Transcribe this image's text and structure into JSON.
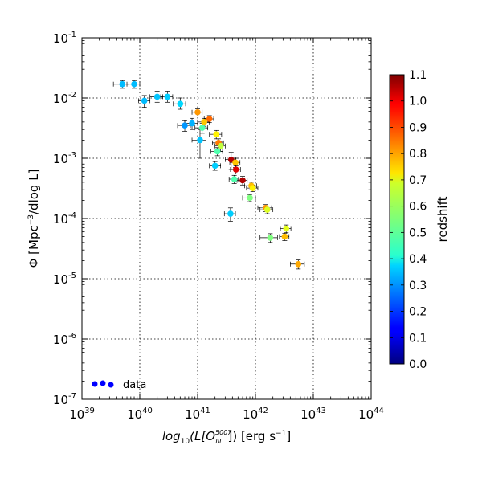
{
  "chart_data": {
    "type": "scatter",
    "title": "",
    "xlabel": "log₁₀(L[O₃₃₃⁵⁰⁰⁷]) [erg s⁻¹]",
    "xlabel_parts": {
      "pre": "log",
      "sub1": "10",
      "mid": "(L[O",
      "sub2": "III",
      "sup": "5007",
      "post": "]) [erg s",
      "unit_sup": "−1",
      "close": "]"
    },
    "ylabel": "Φ [Mpc⁻³/dlog L]",
    "ylabel_parts": {
      "pre": "Φ [Mpc",
      "sup": "−3",
      "post": "/dlog L]"
    },
    "xscale": "log",
    "yscale": "log",
    "xlim": [
      1e+39,
      1e+44
    ],
    "ylim": [
      1e-07,
      0.1
    ],
    "x_ticks": [
      {
        "value": 1e+39,
        "base": "10",
        "exp": "39"
      },
      {
        "value": 1e+40,
        "base": "10",
        "exp": "40"
      },
      {
        "value": 1e+41,
        "base": "10",
        "exp": "41"
      },
      {
        "value": 1e+42,
        "base": "10",
        "exp": "42"
      },
      {
        "value": 1e+43,
        "base": "10",
        "exp": "43"
      },
      {
        "value": 1e+44,
        "base": "10",
        "exp": "44"
      }
    ],
    "y_ticks": [
      {
        "value": 1e-07,
        "base": "10",
        "exp": "-7"
      },
      {
        "value": 1e-06,
        "base": "10",
        "exp": "-6"
      },
      {
        "value": 1e-05,
        "base": "10",
        "exp": "-5"
      },
      {
        "value": 0.0001,
        "base": "10",
        "exp": "-4"
      },
      {
        "value": 0.001,
        "base": "10",
        "exp": "-3"
      },
      {
        "value": 0.01,
        "base": "10",
        "exp": "-2"
      },
      {
        "value": 0.1,
        "base": "10",
        "exp": "-1"
      }
    ],
    "grid": true,
    "legend": {
      "placement": "lower-left",
      "entries": [
        {
          "label": "data",
          "color": "#0000ff"
        }
      ]
    },
    "colorbar": {
      "label": "redshift",
      "min": 0.0,
      "max": 1.1,
      "ticks": [
        "0.0",
        "0.1",
        "0.2",
        "0.3",
        "0.4",
        "0.5",
        "0.6",
        "0.7",
        "0.8",
        "0.9",
        "1.0",
        "1.1"
      ],
      "colormap": "jet"
    },
    "points": [
      {
        "x": 5e+39,
        "y": 0.017,
        "z": 0.34,
        "xlo": 3.5e+39,
        "xhi": 6.5e+39,
        "ylo": 0.0145,
        "yhi": 0.0195
      },
      {
        "x": 8e+39,
        "y": 0.017,
        "z": 0.34,
        "xlo": 6e+39,
        "xhi": 1e+40,
        "ylo": 0.0145,
        "yhi": 0.0195
      },
      {
        "x": 1.2e+40,
        "y": 0.009,
        "z": 0.34,
        "xlo": 9.5e+39,
        "xhi": 1.5e+40,
        "ylo": 0.007,
        "yhi": 0.011
      },
      {
        "x": 2e+40,
        "y": 0.0105,
        "z": 0.35,
        "xlo": 1.5e+40,
        "xhi": 2.5e+40,
        "ylo": 0.0085,
        "yhi": 0.013
      },
      {
        "x": 3e+40,
        "y": 0.0105,
        "z": 0.36,
        "xlo": 2.3e+40,
        "xhi": 3.7e+40,
        "ylo": 0.0085,
        "yhi": 0.013
      },
      {
        "x": 5e+40,
        "y": 0.008,
        "z": 0.37,
        "xlo": 3.8e+40,
        "xhi": 6.2e+40,
        "ylo": 0.0065,
        "yhi": 0.01
      },
      {
        "x": 6e+40,
        "y": 0.0035,
        "z": 0.3,
        "xlo": 4.5e+40,
        "xhi": 7.5e+40,
        "ylo": 0.0028,
        "yhi": 0.0042
      },
      {
        "x": 8e+40,
        "y": 0.0038,
        "z": 0.33,
        "xlo": 6e+40,
        "xhi": 1e+41,
        "ylo": 0.003,
        "yhi": 0.0046
      },
      {
        "x": 1e+41,
        "y": 0.0058,
        "z": 0.8,
        "xlo": 8e+40,
        "xhi": 1.2e+41,
        "ylo": 0.005,
        "yhi": 0.0066
      },
      {
        "x": 1.1e+41,
        "y": 0.002,
        "z": 0.35,
        "xlo": 8e+40,
        "xhi": 1.4e+41,
        "ylo": 0.001,
        "yhi": 0.003
      },
      {
        "x": 1.2e+41,
        "y": 0.0032,
        "z": 0.5,
        "xlo": 9e+40,
        "xhi": 1.5e+41,
        "ylo": 0.0026,
        "yhi": 0.0038
      },
      {
        "x": 1.3e+41,
        "y": 0.004,
        "z": 0.75,
        "xlo": 1e+41,
        "xhi": 1.6e+41,
        "ylo": 0.0034,
        "yhi": 0.0046
      },
      {
        "x": 1.6e+41,
        "y": 0.0045,
        "z": 0.85,
        "xlo": 1.3e+41,
        "xhi": 1.9e+41,
        "ylo": 0.0039,
        "yhi": 0.0051
      },
      {
        "x": 2e+41,
        "y": 0.00075,
        "z": 0.36,
        "xlo": 1.6e+41,
        "xhi": 2.5e+41,
        "ylo": 0.00063,
        "yhi": 0.00088
      },
      {
        "x": 2.1e+41,
        "y": 0.0025,
        "z": 0.7,
        "xlo": 1.6e+41,
        "xhi": 2.6e+41,
        "ylo": 0.0021,
        "yhi": 0.0029
      },
      {
        "x": 2.2e+41,
        "y": 0.0013,
        "z": 0.5,
        "xlo": 1.7e+41,
        "xhi": 2.7e+41,
        "ylo": 0.0011,
        "yhi": 0.0015
      },
      {
        "x": 2.3e+41,
        "y": 0.0018,
        "z": 0.83,
        "xlo": 1.8e+41,
        "xhi": 2.8e+41,
        "ylo": 0.0015,
        "yhi": 0.0021
      },
      {
        "x": 2.5e+41,
        "y": 0.0016,
        "z": 0.62,
        "xlo": 2e+41,
        "xhi": 3e+41,
        "ylo": 0.0013,
        "yhi": 0.0019
      },
      {
        "x": 3.8e+41,
        "y": 0.00095,
        "z": 1.05,
        "xlo": 3e+41,
        "xhi": 4.6e+41,
        "ylo": 0.00065,
        "yhi": 0.00125
      },
      {
        "x": 4.3e+41,
        "y": 0.00045,
        "z": 0.5,
        "xlo": 3.5e+41,
        "xhi": 5.1e+41,
        "ylo": 0.00038,
        "yhi": 0.00052
      },
      {
        "x": 4.5e+41,
        "y": 0.00085,
        "z": 0.75,
        "xlo": 3.6e+41,
        "xhi": 5.4e+41,
        "ylo": 0.0007,
        "yhi": 0.001
      },
      {
        "x": 4.6e+41,
        "y": 0.00065,
        "z": 1.0,
        "xlo": 3.7e+41,
        "xhi": 5.5e+41,
        "ylo": 0.00055,
        "yhi": 0.00075
      },
      {
        "x": 3.7e+41,
        "y": 0.00012,
        "z": 0.36,
        "xlo": 2.9e+41,
        "xhi": 4.5e+41,
        "ylo": 9e-05,
        "yhi": 0.00015
      },
      {
        "x": 6e+41,
        "y": 0.00043,
        "z": 1.05,
        "xlo": 4.8e+41,
        "xhi": 7.2e+41,
        "ylo": 0.00036,
        "yhi": 0.0005
      },
      {
        "x": 8e+41,
        "y": 0.00022,
        "z": 0.55,
        "xlo": 6e+41,
        "xhi": 1e+42,
        "ylo": 0.00019,
        "yhi": 0.00025
      },
      {
        "x": 8.5e+41,
        "y": 0.00035,
        "z": 0.76,
        "xlo": 6.5e+41,
        "xhi": 1.05e+42,
        "ylo": 0.0003,
        "yhi": 0.0004
      },
      {
        "x": 9e+41,
        "y": 0.00032,
        "z": 0.7,
        "xlo": 7e+41,
        "xhi": 1.1e+42,
        "ylo": 0.00028,
        "yhi": 0.00036
      },
      {
        "x": 1.5e+42,
        "y": 0.00015,
        "z": 0.8,
        "xlo": 1.1e+42,
        "xhi": 1.9e+42,
        "ylo": 0.00013,
        "yhi": 0.00017
      },
      {
        "x": 1.6e+42,
        "y": 0.00014,
        "z": 0.65,
        "xlo": 1.2e+42,
        "xhi": 2e+42,
        "ylo": 0.00012,
        "yhi": 0.00016
      },
      {
        "x": 1.8e+42,
        "y": 4.8e-05,
        "z": 0.55,
        "xlo": 1.2e+42,
        "xhi": 2.4e+42,
        "ylo": 4e-05,
        "yhi": 5.6e-05
      },
      {
        "x": 3.2e+42,
        "y": 5e-05,
        "z": 0.76,
        "xlo": 2.6e+42,
        "xhi": 3.8e+42,
        "ylo": 4.3e-05,
        "yhi": 5.7e-05
      },
      {
        "x": 3.4e+42,
        "y": 6.8e-05,
        "z": 0.66,
        "xlo": 2.7e+42,
        "xhi": 4.1e+42,
        "ylo": 5.8e-05,
        "yhi": 7.8e-05
      },
      {
        "x": 5.5e+42,
        "y": 1.75e-05,
        "z": 0.78,
        "xlo": 4e+42,
        "xhi": 7e+42,
        "ylo": 1.45e-05,
        "yhi": 2.05e-05
      }
    ]
  }
}
